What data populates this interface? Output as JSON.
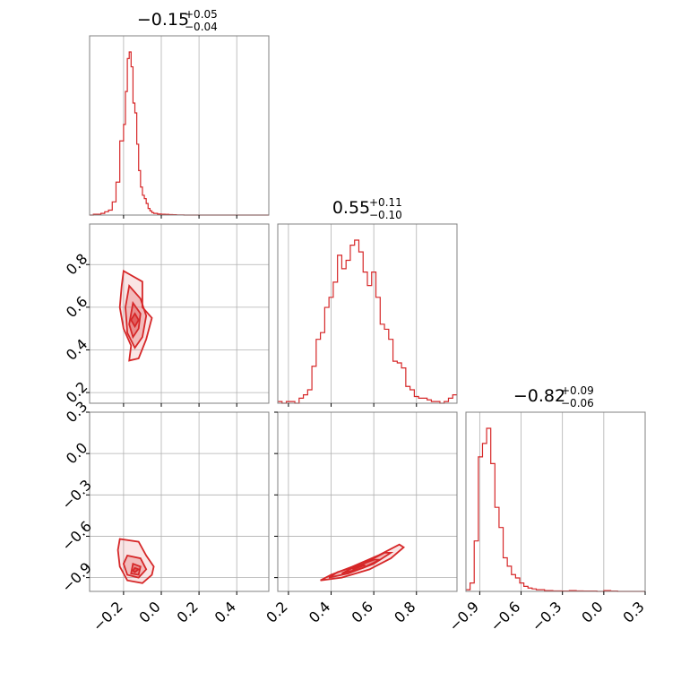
{
  "chart_data": {
    "type": "corner",
    "color": "#d62728",
    "parameters": [
      {
        "title_median": "−0.15",
        "title_plus": "+0.05",
        "title_minus": "−0.04",
        "range": [
          -0.38,
          0.57
        ],
        "ticks": [
          -0.2,
          0.0,
          0.2,
          0.4
        ],
        "tick_labels": [
          "−0.2",
          "0.0",
          "0.2",
          "0.4"
        ],
        "hist_bins": [
          -0.38,
          -0.36,
          -0.34,
          -0.32,
          -0.3,
          -0.28,
          -0.26,
          -0.24,
          -0.22,
          -0.2,
          -0.19,
          -0.18,
          -0.17,
          -0.16,
          -0.15,
          -0.14,
          -0.13,
          -0.12,
          -0.11,
          -0.1,
          -0.09,
          -0.08,
          -0.07,
          -0.06,
          -0.05,
          -0.04,
          -0.02,
          0.0,
          0.02,
          0.04,
          0.06,
          0.08,
          0.12,
          0.57
        ],
        "hist_counts": [
          0,
          0.005,
          0.005,
          0.01,
          0.02,
          0.03,
          0.08,
          0.2,
          0.45,
          0.55,
          0.75,
          0.95,
          0.99,
          0.9,
          0.68,
          0.62,
          0.43,
          0.27,
          0.17,
          0.12,
          0.1,
          0.07,
          0.04,
          0.025,
          0.015,
          0.01,
          0.006,
          0.005,
          0.004,
          0.003,
          0.002,
          0.001,
          0.0
        ]
      },
      {
        "title_median": "0.55",
        "title_plus": "+0.11",
        "title_minus": "−0.10",
        "range": [
          0.15,
          0.99
        ],
        "ticks": [
          0.2,
          0.4,
          0.6,
          0.8
        ],
        "tick_labels": [
          "0.2",
          "0.4",
          "0.6",
          "0.8"
        ],
        "hist_bins": [
          0.15,
          0.17,
          0.19,
          0.21,
          0.23,
          0.25,
          0.27,
          0.29,
          0.31,
          0.33,
          0.35,
          0.37,
          0.39,
          0.41,
          0.43,
          0.45,
          0.47,
          0.49,
          0.51,
          0.53,
          0.55,
          0.57,
          0.59,
          0.61,
          0.63,
          0.65,
          0.67,
          0.69,
          0.71,
          0.73,
          0.75,
          0.77,
          0.79,
          0.81,
          0.83,
          0.85,
          0.87,
          0.89,
          0.91,
          0.93,
          0.95,
          0.97,
          0.99
        ],
        "hist_counts": [
          0.01,
          0.0,
          0.01,
          0.01,
          0.0,
          0.03,
          0.05,
          0.08,
          0.22,
          0.38,
          0.42,
          0.57,
          0.63,
          0.72,
          0.88,
          0.8,
          0.85,
          0.94,
          0.97,
          0.9,
          0.78,
          0.7,
          0.78,
          0.63,
          0.47,
          0.44,
          0.38,
          0.25,
          0.24,
          0.21,
          0.1,
          0.08,
          0.04,
          0.03,
          0.03,
          0.02,
          0.01,
          0.01,
          0.0,
          0.01,
          0.03,
          0.05
        ]
      },
      {
        "title_median": "−0.82",
        "title_plus": "+0.09",
        "title_minus": "−0.06",
        "range": [
          -1.0,
          0.3
        ],
        "ticks": [
          -0.9,
          -0.6,
          -0.3,
          0.0,
          0.3
        ],
        "tick_labels": [
          "−0.9",
          "−0.6",
          "−0.3",
          "0.0",
          "0.3"
        ],
        "hist_bins": [
          -1.0,
          -0.97,
          -0.94,
          -0.91,
          -0.88,
          -0.85,
          -0.82,
          -0.79,
          -0.76,
          -0.73,
          -0.7,
          -0.67,
          -0.64,
          -0.61,
          -0.58,
          -0.55,
          -0.52,
          -0.49,
          -0.46,
          -0.43,
          -0.4,
          -0.37,
          -0.34,
          -0.31,
          -0.28,
          -0.25,
          -0.2,
          -0.15,
          -0.1,
          -0.05,
          0.0,
          0.05,
          0.1,
          0.3
        ],
        "hist_counts": [
          0.01,
          0.05,
          0.3,
          0.8,
          0.88,
          0.97,
          0.76,
          0.5,
          0.38,
          0.2,
          0.15,
          0.1,
          0.08,
          0.05,
          0.03,
          0.02,
          0.015,
          0.01,
          0.01,
          0.005,
          0.005,
          0.003,
          0.003,
          0.002,
          0.002,
          0.005,
          0.003,
          0.002,
          0.002,
          0.0,
          0.005,
          0.002,
          0.0
        ]
      }
    ],
    "pairs": [
      {
        "x_param": 0,
        "y_param": 1,
        "y_ticks": [
          0.2,
          0.4,
          0.6,
          0.8
        ],
        "y_tick_labels": [
          "0.2",
          "0.4",
          "0.6",
          "0.8"
        ],
        "levels": [
          [
            [
              -0.2,
              0.77
            ],
            [
              -0.1,
              0.72
            ],
            [
              -0.1,
              0.6
            ],
            [
              -0.05,
              0.55
            ],
            [
              -0.08,
              0.45
            ],
            [
              -0.12,
              0.36
            ],
            [
              -0.17,
              0.35
            ],
            [
              -0.16,
              0.42
            ],
            [
              -0.2,
              0.5
            ],
            [
              -0.22,
              0.6
            ],
            [
              -0.21,
              0.7
            ],
            [
              -0.2,
              0.77
            ]
          ],
          [
            [
              -0.17,
              0.7
            ],
            [
              -0.11,
              0.64
            ],
            [
              -0.08,
              0.56
            ],
            [
              -0.1,
              0.46
            ],
            [
              -0.14,
              0.41
            ],
            [
              -0.18,
              0.48
            ],
            [
              -0.19,
              0.6
            ],
            [
              -0.17,
              0.7
            ]
          ],
          [
            [
              -0.15,
              0.62
            ],
            [
              -0.11,
              0.57
            ],
            [
              -0.12,
              0.5
            ],
            [
              -0.15,
              0.46
            ],
            [
              -0.17,
              0.52
            ],
            [
              -0.15,
              0.62
            ]
          ],
          [
            [
              -0.14,
              0.57
            ],
            [
              -0.12,
              0.54
            ],
            [
              -0.14,
              0.51
            ],
            [
              -0.16,
              0.54
            ],
            [
              -0.14,
              0.57
            ]
          ]
        ]
      },
      {
        "x_param": 0,
        "y_param": 2,
        "y_ticks": [
          -0.9,
          -0.6,
          -0.3,
          0.0,
          0.3
        ],
        "y_tick_labels": [
          "−0.9",
          "−0.6",
          "−0.3",
          "0.0",
          "0.3"
        ],
        "levels": [
          [
            [
              -0.22,
              -0.62
            ],
            [
              -0.12,
              -0.64
            ],
            [
              -0.08,
              -0.74
            ],
            [
              -0.04,
              -0.82
            ],
            [
              -0.05,
              -0.88
            ],
            [
              -0.1,
              -0.94
            ],
            [
              -0.18,
              -0.92
            ],
            [
              -0.22,
              -0.82
            ],
            [
              -0.23,
              -0.7
            ],
            [
              -0.22,
              -0.62
            ]
          ],
          [
            [
              -0.18,
              -0.74
            ],
            [
              -0.11,
              -0.76
            ],
            [
              -0.08,
              -0.84
            ],
            [
              -0.12,
              -0.9
            ],
            [
              -0.18,
              -0.88
            ],
            [
              -0.2,
              -0.8
            ],
            [
              -0.18,
              -0.74
            ]
          ],
          [
            [
              -0.15,
              -0.8
            ],
            [
              -0.11,
              -0.82
            ],
            [
              -0.12,
              -0.88
            ],
            [
              -0.16,
              -0.87
            ],
            [
              -0.15,
              -0.8
            ]
          ],
          [
            [
              -0.14,
              -0.83
            ],
            [
              -0.12,
              -0.84
            ],
            [
              -0.14,
              -0.86
            ],
            [
              -0.15,
              -0.85
            ],
            [
              -0.14,
              -0.83
            ]
          ]
        ]
      },
      {
        "x_param": 1,
        "y_param": 2,
        "y_ticks": [
          -0.9,
          -0.6,
          -0.3,
          0.0,
          0.3
        ],
        "y_tick_labels": [
          "−0.9",
          "−0.6",
          "−0.3",
          "0.0",
          "0.3"
        ],
        "levels": [
          [
            [
              0.35,
              -0.92
            ],
            [
              0.45,
              -0.9
            ],
            [
              0.58,
              -0.84
            ],
            [
              0.68,
              -0.76
            ],
            [
              0.74,
              -0.68
            ],
            [
              0.72,
              -0.66
            ],
            [
              0.62,
              -0.74
            ],
            [
              0.5,
              -0.82
            ],
            [
              0.4,
              -0.88
            ],
            [
              0.35,
              -0.92
            ]
          ],
          [
            [
              0.39,
              -0.9
            ],
            [
              0.48,
              -0.87
            ],
            [
              0.6,
              -0.8
            ],
            [
              0.68,
              -0.72
            ],
            [
              0.65,
              -0.72
            ],
            [
              0.55,
              -0.8
            ],
            [
              0.43,
              -0.86
            ],
            [
              0.39,
              -0.9
            ]
          ],
          [
            [
              0.45,
              -0.87
            ],
            [
              0.55,
              -0.83
            ],
            [
              0.63,
              -0.77
            ],
            [
              0.6,
              -0.77
            ],
            [
              0.5,
              -0.83
            ],
            [
              0.45,
              -0.87
            ]
          ],
          [
            [
              0.5,
              -0.84
            ],
            [
              0.56,
              -0.81
            ],
            [
              0.54,
              -0.81
            ],
            [
              0.5,
              -0.84
            ]
          ]
        ]
      }
    ]
  }
}
